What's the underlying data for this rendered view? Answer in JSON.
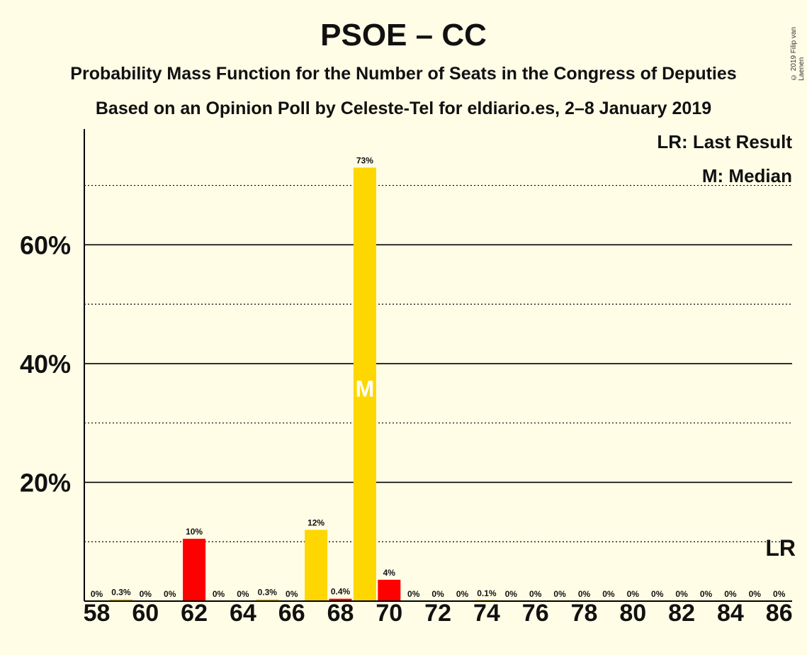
{
  "title": "PSOE – CC",
  "subtitle": "Probability Mass Function for the Number of Seats in the Congress of Deputies",
  "subtitle2": "Based on an Opinion Poll by Celeste-Tel for eldiario.es, 2–8 January 2019",
  "copyright": "© 2019 Filip van Laenen",
  "legend": {
    "last_result": "LR: Last Result",
    "median": "M: Median"
  },
  "markers": {
    "median_label": "M",
    "last_result_label": "LR"
  },
  "colors": {
    "background": "#FFFDE6",
    "bar_main": "#FFD700",
    "bar_alt": "#FF0000",
    "axis": "#000000"
  },
  "chart_data": {
    "type": "bar",
    "x": [
      58,
      59,
      60,
      61,
      62,
      63,
      64,
      65,
      66,
      67,
      68,
      69,
      70,
      71,
      72,
      73,
      74,
      75,
      76,
      77,
      78,
      79,
      80,
      81,
      82,
      83,
      84,
      85,
      86
    ],
    "values": [
      0,
      0.3,
      0,
      0,
      10.5,
      0,
      0,
      0.3,
      0,
      12,
      0.4,
      73,
      3.6,
      0,
      0,
      0,
      0.1,
      0,
      0,
      0,
      0,
      0,
      0,
      0,
      0,
      0,
      0,
      0,
      0
    ],
    "labels": [
      "0%",
      "0.3%",
      "0%",
      "0%",
      "10%",
      "0%",
      "0%",
      "0.3%",
      "0%",
      "12%",
      "0.4%",
      "73%",
      "4%",
      "0%",
      "0%",
      "0%",
      "0.1%",
      "0%",
      "0%",
      "0%",
      "0%",
      "0%",
      "0%",
      "0%",
      "0%",
      "0%",
      "0%",
      "0%",
      "0%"
    ],
    "bar_colors": [
      "#FFD700",
      "#FFD700",
      "#FFD700",
      "#FFD700",
      "#FF0000",
      "#FFD700",
      "#FFD700",
      "#FFD700",
      "#FFD700",
      "#FFD700",
      "#FF0000",
      "#FFD700",
      "#FF0000",
      "#FFD700",
      "#FFD700",
      "#FFD700",
      "#FFD700",
      "#FFD700",
      "#FFD700",
      "#FFD700",
      "#FFD700",
      "#FFD700",
      "#FFD700",
      "#FFD700",
      "#FFD700",
      "#FFD700",
      "#FFD700",
      "#FFD700",
      "#FFD700"
    ],
    "x_tick_labels": [
      "58",
      "60",
      "62",
      "64",
      "66",
      "68",
      "70",
      "72",
      "74",
      "76",
      "78",
      "80",
      "82",
      "84",
      "86"
    ],
    "y_ticks_major": [
      20,
      40,
      60
    ],
    "y_tick_labels": [
      "20%",
      "40%",
      "60%"
    ],
    "y_ticks_minor": [
      10,
      30,
      50,
      70
    ],
    "ylim": [
      0,
      79.5
    ],
    "median_x": 69,
    "last_result_x": 86,
    "last_result_y": 10
  }
}
